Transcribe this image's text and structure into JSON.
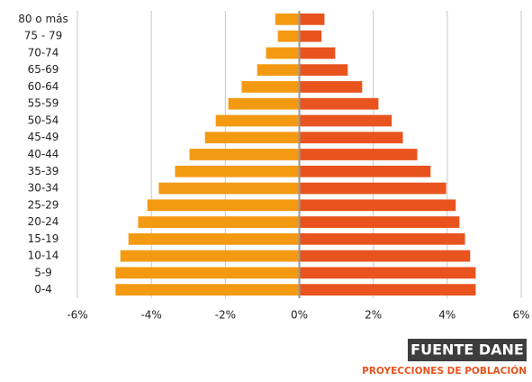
{
  "chart_data": {
    "type": "pyramid",
    "categories": [
      "80 o más",
      "75 - 79",
      "70-74",
      "65-69",
      "60-64",
      "55-59",
      "50-54",
      "45-49",
      "40-44",
      "35-39",
      "30-34",
      "25-29",
      "20-24",
      "15-19",
      "10-14",
      "5-9",
      "0-4"
    ],
    "series": [
      {
        "color": "#f39a12",
        "values": [
          -0.65,
          -0.58,
          -0.9,
          -1.14,
          -1.56,
          -1.92,
          -2.26,
          -2.55,
          -2.97,
          -3.36,
          -3.8,
          -4.11,
          -4.36,
          -4.62,
          -4.84,
          -4.97,
          -4.97
        ]
      },
      {
        "color": "#e8531e",
        "values": [
          0.68,
          0.6,
          0.97,
          1.31,
          1.7,
          2.14,
          2.5,
          2.8,
          3.19,
          3.55,
          3.97,
          4.23,
          4.33,
          4.48,
          4.62,
          4.77,
          4.77
        ]
      }
    ],
    "xlim": [
      -6,
      6
    ],
    "xticks": [
      {
        "value": -6,
        "label": "-6%"
      },
      {
        "value": -4,
        "label": "-4%"
      },
      {
        "value": -2,
        "label": "-2%"
      },
      {
        "value": 0,
        "label": "0%"
      },
      {
        "value": 2,
        "label": "2%"
      },
      {
        "value": 4,
        "label": "4%"
      },
      {
        "value": 6,
        "label": "6%"
      }
    ],
    "grid": true,
    "source": "FUENTE DANE",
    "source_note": "PROYECCIONES DE POBLACIÓN"
  }
}
